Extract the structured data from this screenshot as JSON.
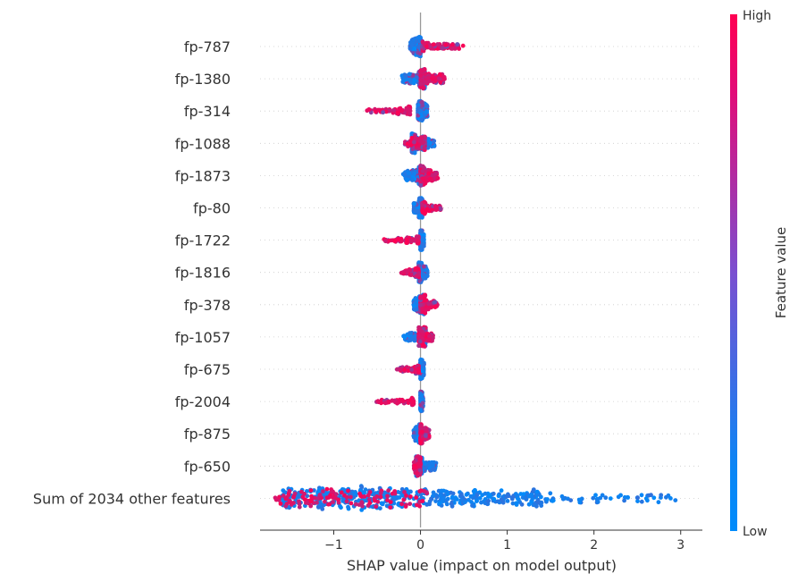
{
  "chart_data": {
    "type": "scatter",
    "subtype": "shap-beeswarm",
    "xlabel": "SHAP value (impact on model output)",
    "xlim": [
      -1.85,
      3.25
    ],
    "xticks": [
      -1,
      0,
      1,
      2,
      3
    ],
    "xtick_labels": [
      "−1",
      "0",
      "1",
      "2",
      "3"
    ],
    "grid": "dotted horizontal rows",
    "colorbar": {
      "label": "Feature value",
      "high_label": "High",
      "low_label": "Low",
      "low_color": "#008bfb",
      "high_color": "#ff0052"
    },
    "features": [
      {
        "name": "fp-787",
        "low": {
          "range": [
            -0.12,
            0.0
          ],
          "weight": 0.7
        },
        "high": {
          "range": [
            0.02,
            0.5
          ],
          "weight": 0.3
        }
      },
      {
        "name": "fp-1380",
        "low": {
          "range": [
            -0.22,
            0.05
          ],
          "weight": 0.55
        },
        "high": {
          "range": [
            0.0,
            0.28
          ],
          "weight": 0.45
        }
      },
      {
        "name": "fp-314",
        "low": {
          "range": [
            -0.03,
            0.08
          ],
          "weight": 0.75
        },
        "high": {
          "range": [
            -0.62,
            -0.12
          ],
          "weight": 0.25
        }
      },
      {
        "name": "fp-1088",
        "low": {
          "range": [
            -0.1,
            0.16
          ],
          "weight": 0.7
        },
        "high": {
          "range": [
            -0.18,
            0.05
          ],
          "weight": 0.3
        }
      },
      {
        "name": "fp-1873",
        "low": {
          "range": [
            -0.2,
            0.03
          ],
          "weight": 0.55
        },
        "high": {
          "range": [
            0.0,
            0.2
          ],
          "weight": 0.45
        }
      },
      {
        "name": "fp-80",
        "low": {
          "range": [
            -0.08,
            0.02
          ],
          "weight": 0.65
        },
        "high": {
          "range": [
            0.02,
            0.25
          ],
          "weight": 0.35
        }
      },
      {
        "name": "fp-1722",
        "low": {
          "range": [
            0.0,
            0.04
          ],
          "weight": 0.75
        },
        "high": {
          "range": [
            -0.42,
            -0.02
          ],
          "weight": 0.25
        }
      },
      {
        "name": "fp-1816",
        "low": {
          "range": [
            -0.02,
            0.08
          ],
          "weight": 0.75
        },
        "high": {
          "range": [
            -0.22,
            -0.02
          ],
          "weight": 0.25
        }
      },
      {
        "name": "fp-378",
        "low": {
          "range": [
            -0.08,
            0.04
          ],
          "weight": 0.6
        },
        "high": {
          "range": [
            0.0,
            0.2
          ],
          "weight": 0.4
        }
      },
      {
        "name": "fp-1057",
        "low": {
          "range": [
            -0.2,
            0.06
          ],
          "weight": 0.55
        },
        "high": {
          "range": [
            -0.02,
            0.15
          ],
          "weight": 0.45
        }
      },
      {
        "name": "fp-675",
        "low": {
          "range": [
            0.0,
            0.04
          ],
          "weight": 0.75
        },
        "high": {
          "range": [
            -0.28,
            -0.02
          ],
          "weight": 0.25
        }
      },
      {
        "name": "fp-2004",
        "low": {
          "range": [
            0.0,
            0.03
          ],
          "weight": 0.75
        },
        "high": {
          "range": [
            -0.52,
            -0.08
          ],
          "weight": 0.25
        }
      },
      {
        "name": "fp-875",
        "low": {
          "range": [
            -0.08,
            0.0
          ],
          "weight": 0.5
        },
        "high": {
          "range": [
            0.0,
            0.1
          ],
          "weight": 0.5
        }
      },
      {
        "name": "fp-650",
        "low": {
          "range": [
            -0.05,
            0.18
          ],
          "weight": 0.7
        },
        "high": {
          "range": [
            -0.08,
            0.0
          ],
          "weight": 0.3
        }
      },
      {
        "name": "Sum of 2034 other features",
        "low": {
          "range": [
            -1.6,
            3.0
          ],
          "weight": 0.8
        },
        "high": {
          "range": [
            -1.68,
            0.1
          ],
          "weight": 0.2
        }
      }
    ]
  }
}
